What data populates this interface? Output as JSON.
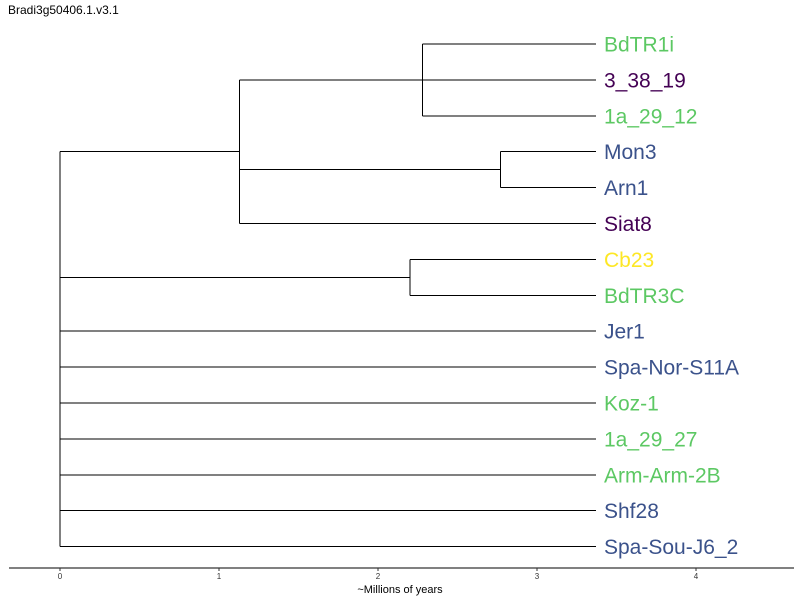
{
  "title": "Bradi3g50406.1.v3.1",
  "axis": {
    "label": "~Millions of years",
    "ticks": [
      0,
      1,
      2,
      3,
      4
    ],
    "domain": [
      0,
      4.6
    ]
  },
  "colors": {
    "green": "#5cc863",
    "purple": "#440154",
    "blue": "#3b528b",
    "yellow": "#fde725"
  },
  "tree": {
    "t": 0,
    "children": [
      {
        "t": 1.13,
        "children": [
          {
            "t": 2.28,
            "children": [
              {
                "leaf": "BdTR1i",
                "color": "green"
              },
              {
                "leaf": "3_38_19",
                "color": "purple"
              },
              {
                "leaf": "1a_29_12",
                "color": "green"
              }
            ]
          },
          {
            "t": 2.77,
            "children": [
              {
                "leaf": "Mon3",
                "color": "blue"
              },
              {
                "leaf": "Arn1",
                "color": "blue"
              }
            ]
          },
          {
            "leaf": "Siat8",
            "color": "purple"
          }
        ]
      },
      {
        "t": 2.2,
        "children": [
          {
            "leaf": "Cb23",
            "color": "yellow"
          },
          {
            "leaf": "BdTR3C",
            "color": "green"
          }
        ]
      },
      {
        "leaf": "Jer1",
        "color": "blue"
      },
      {
        "leaf": "Spa-Nor-S11A",
        "color": "blue"
      },
      {
        "leaf": "Koz-1",
        "color": "green"
      },
      {
        "leaf": "1a_29_27",
        "color": "green"
      },
      {
        "leaf": "Arm-Arm-2B",
        "color": "green"
      },
      {
        "leaf": "Shf28",
        "color": "blue"
      },
      {
        "leaf": "Spa-Sou-J6_2",
        "color": "blue"
      }
    ]
  }
}
